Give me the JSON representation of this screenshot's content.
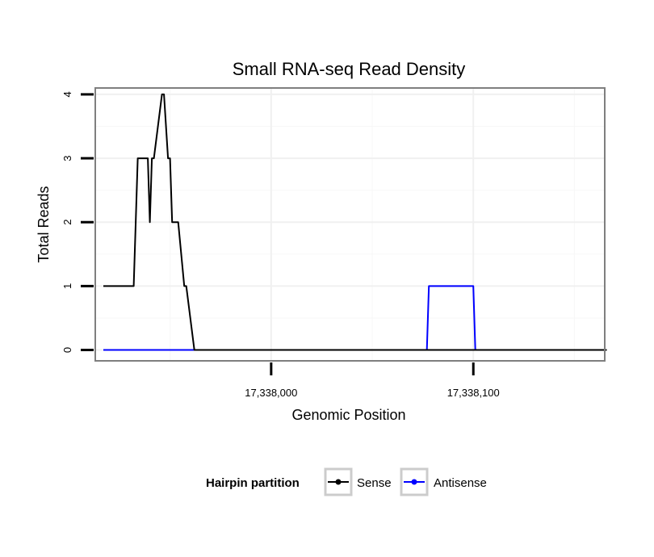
{
  "chart_data": {
    "type": "line",
    "title": "Small RNA-seq Read Density",
    "xlabel": "Genomic Position",
    "ylabel": "Total Reads",
    "xlim": [
      17337913,
      17338165
    ],
    "ylim": [
      -0.17,
      4.1
    ],
    "x_ticks": [
      17338000,
      17338100
    ],
    "x_tick_labels": [
      "17,338,000",
      "17,338,100"
    ],
    "y_ticks": [
      0,
      1,
      2,
      3,
      4
    ],
    "y_tick_labels": [
      "0",
      "1",
      "2",
      "3",
      "4"
    ],
    "grid": true,
    "legend": {
      "title": "Hairpin partition",
      "position": "bottom"
    },
    "series": [
      {
        "name": "Sense",
        "color": "#000000",
        "x": [
          17337917,
          17337932,
          17337934,
          17337939,
          17337940,
          17337941,
          17337942,
          17337946,
          17337947,
          17337949,
          17337950,
          17337951,
          17337952,
          17337953,
          17337954,
          17337957,
          17337958,
          17337962,
          17337963,
          17337974,
          17338166
        ],
        "y": [
          1,
          1,
          3,
          3,
          2,
          3,
          3,
          4,
          4,
          3,
          3,
          2,
          2,
          2,
          2,
          1,
          1,
          0,
          0,
          0,
          0
        ]
      },
      {
        "name": "Antisense",
        "color": "#0000ff",
        "x": [
          17337917,
          17338077,
          17338078,
          17338100,
          17338101,
          17338166
        ],
        "y": [
          0,
          0,
          1,
          1,
          0,
          0
        ]
      }
    ]
  }
}
